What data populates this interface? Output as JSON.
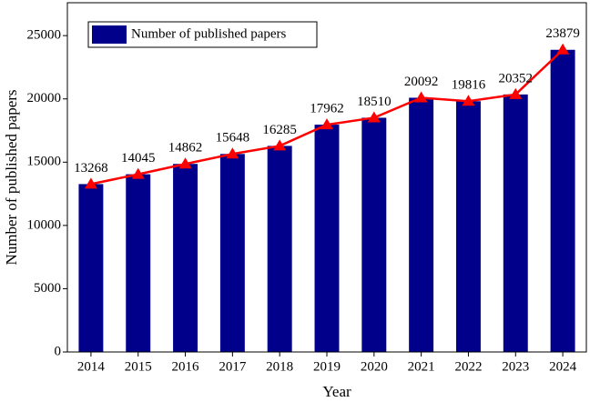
{
  "chart_data": {
    "type": "bar",
    "x_label": "Year",
    "y_label": "Number of published papers",
    "categories": [
      "2014",
      "2015",
      "2016",
      "2017",
      "2018",
      "2019",
      "2020",
      "2021",
      "2022",
      "2023",
      "2024"
    ],
    "series": [
      {
        "name": "Number of published papers",
        "color": "#00008b",
        "values": [
          13268,
          14045,
          14862,
          15648,
          16285,
          17962,
          18510,
          20092,
          19816,
          20352,
          23879
        ]
      }
    ],
    "line_color": "#ff0000",
    "ylim": [
      0,
      27600
    ],
    "yticks": [
      0,
      5000,
      10000,
      15000,
      20000,
      25000
    ],
    "legend": "upper left",
    "grid": false
  }
}
